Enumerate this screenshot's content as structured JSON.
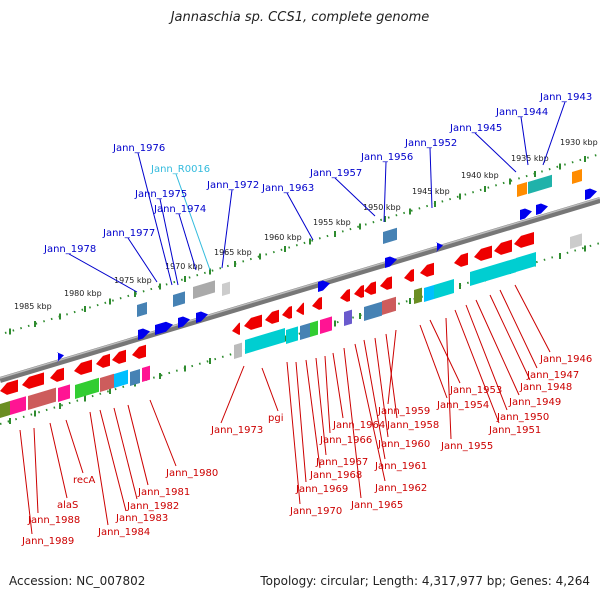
{
  "title": "Jannaschia sp. CCS1, complete genome",
  "footer": {
    "accession": "Accession: NC_007802",
    "summary": "Topology: circular; Length: 4,317,977 bp; Genes: 4,264"
  },
  "colors": {
    "top_label": "#0000cc",
    "bottom_label": "#cc0000",
    "rna_label": "#33bbdd",
    "backbone": "#777777",
    "ruler": "#2e8b2e"
  },
  "upper_ruler_ticks": [
    "1985 kbp",
    "1980 kbp",
    "1975 kbp",
    "1970 kbp",
    "1965 kbp",
    "1960 kbp",
    "1955 kbp",
    "1950 kbp",
    "1945 kbp",
    "1940 kbp",
    "1935 kbp",
    "1930 kbp"
  ],
  "top_strand_labels": [
    "Jann_1976",
    "Jann_R0016",
    "Jann_1975",
    "Jann_1974",
    "Jann_1972",
    "Jann_1977",
    "Jann_1978",
    "Jann_1963",
    "Jann_1957",
    "Jann_1956",
    "Jann_1952",
    "Jann_1945",
    "Jann_1944",
    "Jann_1943"
  ],
  "bottom_strand_labels": [
    "Jann_1946",
    "Jann_1947",
    "Jann_1948",
    "Jann_1949",
    "Jann_1950",
    "Jann_1951",
    "Jann_1953",
    "Jann_1954",
    "Jann_1955",
    "Jann_1959",
    "Jann_1958",
    "Jann_1960",
    "Jann_1961",
    "Jann_1962",
    "Jann_1964",
    "Jann_1966",
    "Jann_1967",
    "Jann_1968",
    "Jann_1969",
    "Jann_1970",
    "Jann_1965",
    "Jann_1973",
    "pgi",
    "Jann_1980",
    "Jann_1981",
    "Jann_1982",
    "Jann_1983",
    "Jann_1984",
    "recA",
    "alaS",
    "Jann_1988",
    "Jann_1989"
  ]
}
